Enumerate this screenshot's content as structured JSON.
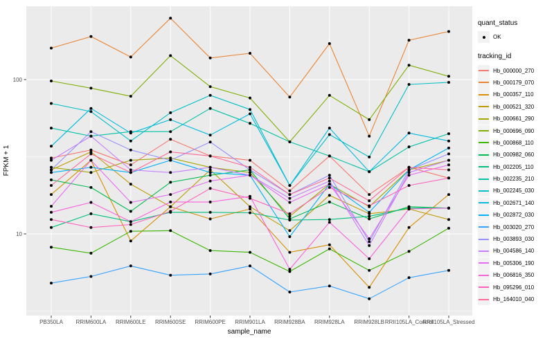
{
  "figure": {
    "bg": "#FFFFFF"
  },
  "chart_data": {
    "type": "line",
    "title": "",
    "xlabel": "sample_name",
    "ylabel": "FPKM + 1",
    "y_scale": "log10",
    "ylim": [
      2.9,
      310
    ],
    "grid": true,
    "legend_position": "right",
    "panel": {
      "bg": "#EBEBEB",
      "grid_color": "#FFFFFF"
    },
    "axis": {
      "tick_color": "#333333",
      "tick_label_color": "#4D4D4D",
      "title_color": "#000000"
    },
    "y_ticks": [
      {
        "label": "10",
        "value": 10
      },
      {
        "label": "100",
        "value": 100
      }
    ],
    "y_minor_breaks": [
      3.1623,
      31.623,
      316.23
    ],
    "categories": [
      "PB350LA",
      "RRIM600LA",
      "RRIM600LE",
      "RRIM600SE",
      "RRIM600PE",
      "RRIM901LA",
      "RRIM928BA",
      "RRIM928LA",
      "RRIM928LB",
      "RRII105LA_Control",
      "RRII105LA_Stressed"
    ],
    "legend": {
      "quant": {
        "title": "quant_status",
        "items": [
          {
            "label": "OK",
            "marker": "point-icon",
            "color": "#000000"
          }
        ]
      },
      "tracking": {
        "title": "tracking_id"
      }
    },
    "point": {
      "color": "#000000",
      "radius": 2
    },
    "series": [
      {
        "name": "Hb_000000_270",
        "color": "#F8766D",
        "values": [
          31,
          35,
          28,
          41,
          32,
          30,
          19,
          32,
          18,
          27,
          23
        ]
      },
      {
        "name": "Hb_000179_070",
        "color": "#EA8331",
        "values": [
          160,
          190,
          140,
          250,
          138,
          148,
          77,
          171,
          43,
          180,
          205
        ]
      },
      {
        "name": "Hb_000357_110",
        "color": "#D89000",
        "values": [
          18,
          30,
          9,
          15,
          12.5,
          14.5,
          7.6,
          8.5,
          4.5,
          11,
          18
        ]
      },
      {
        "name": "Hb_000521_320",
        "color": "#C09B00",
        "values": [
          26,
          34,
          21,
          15,
          26,
          15,
          10.5,
          17.8,
          13.5,
          14.5,
          12.4
        ]
      },
      {
        "name": "Hb_000661_290",
        "color": "#A3A500",
        "values": [
          27,
          25,
          30,
          31,
          27,
          25,
          13,
          21,
          15,
          26,
          30
        ]
      },
      {
        "name": "Hb_000696_090",
        "color": "#7CAE00",
        "values": [
          98,
          88,
          78,
          143,
          90,
          76,
          39.5,
          79,
          55,
          124,
          105
        ]
      },
      {
        "name": "Hb_000868_110",
        "color": "#39B600",
        "values": [
          8.2,
          7.5,
          10.4,
          10.5,
          7.8,
          7.6,
          5.7,
          8,
          5.8,
          7.7,
          10.9
        ]
      },
      {
        "name": "Hb_000982_060",
        "color": "#00BB4E",
        "values": [
          22.4,
          20,
          14,
          21.6,
          24,
          26,
          12.5,
          16.1,
          12.5,
          15,
          14.7
        ]
      },
      {
        "name": "Hb_002205_110",
        "color": "#00BF7D",
        "values": [
          11,
          13.5,
          12,
          13.8,
          13.8,
          13.7,
          12.3,
          12.4,
          13,
          14.7,
          14.7
        ]
      },
      {
        "name": "Hb_002235_210",
        "color": "#00C1A3",
        "values": [
          48.5,
          43,
          46,
          46,
          65,
          52,
          39.5,
          32,
          25.3,
          36.6,
          44.6
        ]
      },
      {
        "name": "Hb_002245_030",
        "color": "#00BFC4",
        "values": [
          70,
          62,
          40,
          61,
          79,
          64,
          20.6,
          44,
          31.5,
          93,
          96
        ]
      },
      {
        "name": "Hb_002671_140",
        "color": "#00BAE0",
        "values": [
          37,
          65,
          45,
          55,
          43.7,
          60,
          20.6,
          48.5,
          25.3,
          45,
          40
        ]
      },
      {
        "name": "Hb_002872_030",
        "color": "#00B0F6",
        "values": [
          25,
          27,
          25,
          30,
          25,
          24,
          9.6,
          21,
          13.8,
          26,
          36
        ]
      },
      {
        "name": "Hb_003020_270",
        "color": "#35A2FF",
        "values": [
          4.8,
          5.3,
          6.2,
          5.4,
          5.5,
          6.2,
          4.2,
          4.6,
          3.8,
          5.2,
          5.8
        ]
      },
      {
        "name": "Hb_003893_030",
        "color": "#9590FF",
        "values": [
          26,
          46,
          35,
          30,
          39.4,
          26,
          18,
          24,
          8.9,
          26,
          33
        ]
      },
      {
        "name": "Hb_004586_140",
        "color": "#C77CFF",
        "values": [
          30,
          43,
          26,
          25,
          27,
          24,
          17,
          22,
          8.4,
          25,
          30
        ]
      },
      {
        "name": "Hb_005306_190",
        "color": "#E76BF3",
        "values": [
          15.1,
          30,
          16,
          18,
          22,
          24,
          16,
          21,
          9.3,
          24,
          28
        ]
      },
      {
        "name": "Hb_006816_350",
        "color": "#FA62DB",
        "values": [
          13.8,
          16,
          12,
          16.1,
          16.1,
          17.5,
          5.9,
          11.9,
          6.9,
          14.5,
          14.7
        ]
      },
      {
        "name": "Hb_095296_010",
        "color": "#FF62BC",
        "values": [
          12.4,
          11,
          11.5,
          14,
          19.7,
          17,
          13.5,
          20,
          15.2,
          20.6,
          23
        ]
      },
      {
        "name": "Hb_164010_040",
        "color": "#FF6A98",
        "values": [
          20.6,
          33,
          25,
          34,
          32,
          27,
          18,
          23,
          16.4,
          27,
          26
        ]
      }
    ]
  }
}
